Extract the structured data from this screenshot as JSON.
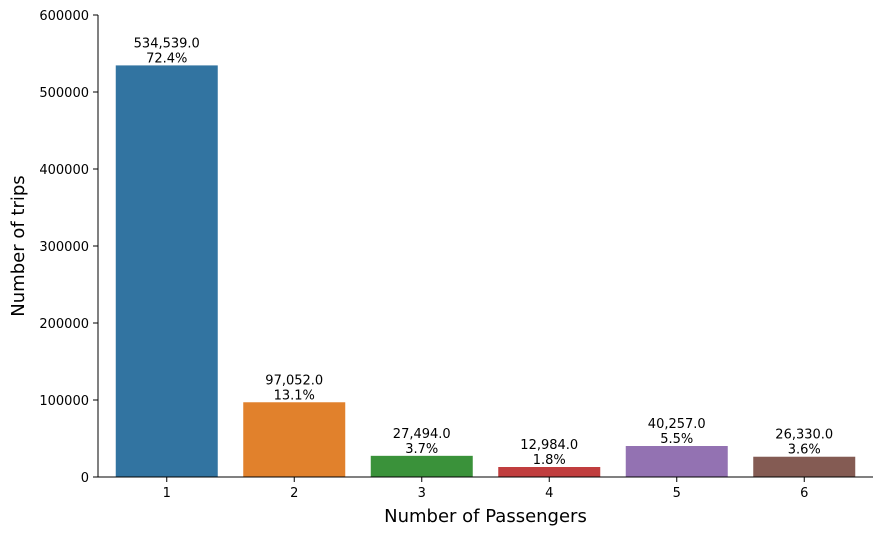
{
  "chart_data": {
    "type": "bar",
    "categories": [
      "1",
      "2",
      "3",
      "4",
      "5",
      "6"
    ],
    "values": [
      534539,
      97052,
      27494,
      12984,
      40257,
      26330
    ],
    "value_labels": [
      "534,539.0",
      "97,052.0",
      "27,494.0",
      "12,984.0",
      "40,257.0",
      "26,330.0"
    ],
    "percent_labels": [
      "72.4%",
      "13.1%",
      "3.7%",
      "1.8%",
      "5.5%",
      "3.6%"
    ],
    "colors": [
      "#3274a1",
      "#e1812c",
      "#3a923a",
      "#c03d3e",
      "#9372b2",
      "#845b53"
    ],
    "xlabel": "Number of Passengers",
    "ylabel": "Number of trips",
    "ylim": [
      0,
      600000
    ],
    "yticks": [
      "0",
      "100000",
      "200000",
      "300000",
      "400000",
      "500000",
      "600000"
    ],
    "yticks_values": [
      0,
      100000,
      200000,
      300000,
      400000,
      500000,
      600000
    ],
    "grid": false,
    "legend": "none"
  }
}
